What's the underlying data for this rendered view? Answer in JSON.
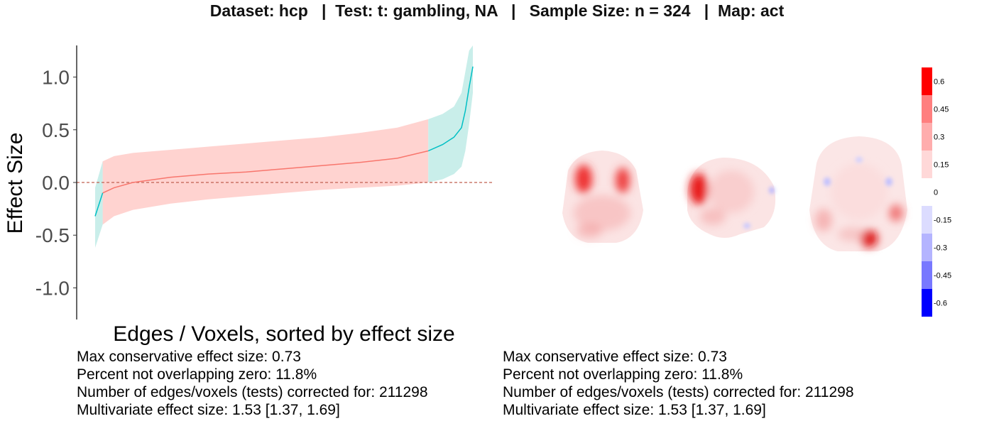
{
  "title": "Dataset: hcp   |  Test: t: gambling, NA   |   Sample Size: n = 324   |  Map: act",
  "chart_data": [
    {
      "type": "area",
      "xlabel": "Edges / Voxels, sorted by effect size",
      "ylabel": "Effect Size",
      "ylim": [
        -1.3,
        1.3
      ],
      "yticks": [
        -1.0,
        -0.5,
        0.0,
        0.5,
        1.0
      ],
      "ytick_labels": [
        "-1.0",
        "-0.5",
        "0.0",
        "0.5",
        "1.0"
      ],
      "reference_line": 0.0,
      "colors": {
        "overlap": "#f8766d",
        "nonoverlap": "#00bfc4",
        "band_overlap": "#ffd3d0",
        "band_nonoverlap": "#c9eeea"
      },
      "x": [
        0.0,
        0.02,
        0.05,
        0.1,
        0.2,
        0.3,
        0.4,
        0.5,
        0.6,
        0.7,
        0.8,
        0.882,
        0.92,
        0.95,
        0.97,
        0.98,
        0.99,
        1.0
      ],
      "estimate": [
        -0.32,
        -0.1,
        -0.05,
        0.0,
        0.05,
        0.08,
        0.1,
        0.13,
        0.16,
        0.19,
        0.23,
        0.3,
        0.36,
        0.43,
        0.52,
        0.68,
        0.9,
        1.1
      ],
      "lower": [
        -0.62,
        -0.4,
        -0.32,
        -0.26,
        -0.2,
        -0.16,
        -0.13,
        -0.1,
        -0.07,
        -0.05,
        -0.03,
        0.0,
        0.03,
        0.08,
        0.15,
        0.3,
        0.55,
        0.85
      ],
      "upper": [
        -0.05,
        0.2,
        0.25,
        0.28,
        0.31,
        0.34,
        0.37,
        0.4,
        0.43,
        0.47,
        0.52,
        0.6,
        0.65,
        0.72,
        0.85,
        1.05,
        1.25,
        1.3
      ],
      "nonoverlap_low_end": 0.02,
      "nonoverlap_high_start": 0.882
    },
    {
      "type": "heatmap",
      "colorbar_labels": [
        "0.6",
        "0.45",
        "0.3",
        "0.15",
        "0",
        "-0.15",
        "-0.3",
        "-0.45",
        "-0.6"
      ],
      "colorbar_colors": [
        "#ff0000",
        "#ff7f7f",
        "#ffadad",
        "#ffd8d8",
        "#ffffff",
        "#dcdcff",
        "#b4b4ff",
        "#7878ff",
        "#0000ff"
      ],
      "views": [
        "coronal",
        "sagittal",
        "axial"
      ]
    }
  ],
  "stats_left": {
    "max_effect": "Max conservative effect size: 0.73",
    "percent_nonoverlap": "Percent not overlapping zero: 11.8%",
    "num_tests": "Number of edges/voxels (tests) corrected for: 211298",
    "multivariate": "Multivariate effect size: 1.53 [1.37, 1.69]"
  },
  "stats_right": {
    "max_effect": "Max conservative effect size: 0.73",
    "percent_nonoverlap": "Percent not overlapping zero: 11.8%",
    "num_tests": "Number of edges/voxels (tests) corrected for: 211298",
    "multivariate": "Multivariate effect size: 1.53 [1.37, 1.69]"
  }
}
